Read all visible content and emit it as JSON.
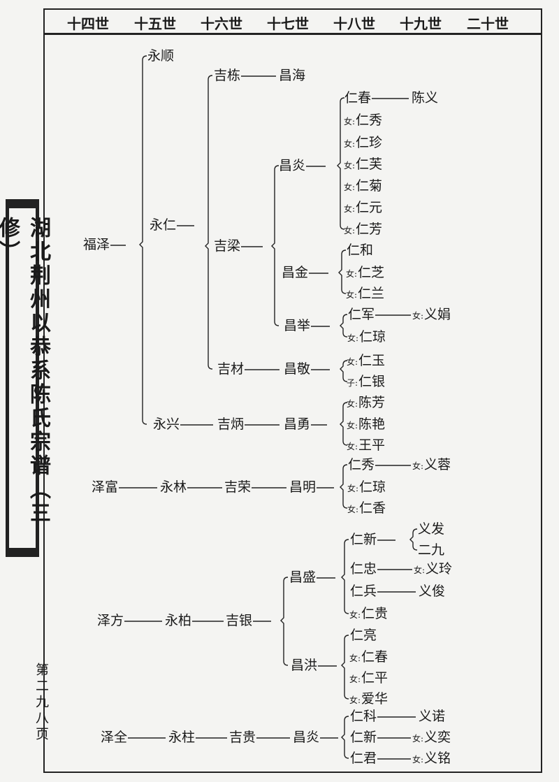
{
  "header": {
    "generations": [
      "十四世",
      "十五世",
      "十六世",
      "十七世",
      "十八世",
      "十九世",
      "二十世"
    ]
  },
  "side_title": "湖北荆州以恭系陈氏宗谱（三修）",
  "page_number": "第二九八页",
  "nodes": [
    {
      "name": "福泽"
    },
    {
      "name": "永顺"
    },
    {
      "name": "永仁"
    },
    {
      "name": "永兴"
    },
    {
      "name": "吉炳"
    },
    {
      "name": "昌勇"
    },
    {
      "name": "吉栋"
    },
    {
      "name": "昌海"
    },
    {
      "name": "吉梁"
    },
    {
      "name": "吉材"
    },
    {
      "name": "昌敬"
    },
    {
      "name": "昌炎"
    },
    {
      "name": "昌金"
    },
    {
      "name": "昌举"
    },
    {
      "name": "仁春"
    },
    {
      "name": "陈义"
    },
    {
      "prefix": "女:",
      "name": "仁秀"
    },
    {
      "prefix": "女:",
      "name": "仁珍"
    },
    {
      "prefix": "女:",
      "name": "仁芙"
    },
    {
      "prefix": "女:",
      "name": "仁菊"
    },
    {
      "prefix": "女:",
      "name": "仁元"
    },
    {
      "prefix": "女:",
      "name": "仁芳"
    },
    {
      "name": "仁和"
    },
    {
      "prefix": "女:",
      "name": "仁芝"
    },
    {
      "prefix": "女:",
      "name": "仁兰"
    },
    {
      "name": "仁军"
    },
    {
      "prefix": "女:",
      "name": "义娟"
    },
    {
      "prefix": "女:",
      "name": "仁琼"
    },
    {
      "prefix": "女:",
      "name": "仁玉"
    },
    {
      "prefix": "子:",
      "name": "仁银"
    },
    {
      "prefix": "女:",
      "name": "陈芳"
    },
    {
      "prefix": "女:",
      "name": "陈艳"
    },
    {
      "prefix": "女:",
      "name": "王平"
    },
    {
      "name": "泽富"
    },
    {
      "name": "永林"
    },
    {
      "name": "吉荣"
    },
    {
      "name": "昌明"
    },
    {
      "name": "仁秀"
    },
    {
      "prefix": "女:",
      "name": "义蓉"
    },
    {
      "prefix": "女:",
      "name": "仁琼"
    },
    {
      "prefix": "女:",
      "name": "仁香"
    },
    {
      "name": "泽方"
    },
    {
      "name": "永柏"
    },
    {
      "name": "吉银"
    },
    {
      "name": "昌盛"
    },
    {
      "name": "昌洪"
    },
    {
      "name": "仁新"
    },
    {
      "name": "义发"
    },
    {
      "name": "二九"
    },
    {
      "name": "仁忠"
    },
    {
      "prefix": "女:",
      "name": "义玲"
    },
    {
      "name": "仁兵"
    },
    {
      "name": "义俊"
    },
    {
      "prefix": "女:",
      "name": "仁贵"
    },
    {
      "name": "仁亮"
    },
    {
      "prefix": "女:",
      "name": "仁春"
    },
    {
      "prefix": "女:",
      "name": "仁平"
    },
    {
      "prefix": "女:",
      "name": "爱华"
    },
    {
      "name": "泽全"
    },
    {
      "name": "永柱"
    },
    {
      "name": "吉贵"
    },
    {
      "name": "昌炎"
    },
    {
      "name": "仁科"
    },
    {
      "name": "义诺"
    },
    {
      "name": "仁新"
    },
    {
      "prefix": "女:",
      "name": "义奕"
    },
    {
      "name": "仁君"
    },
    {
      "prefix": "女:",
      "name": "义铭"
    }
  ]
}
